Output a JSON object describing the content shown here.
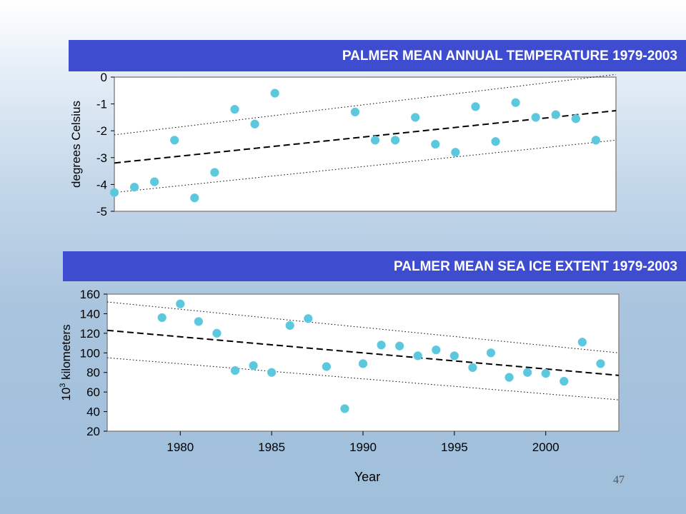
{
  "slide": {
    "page_number": "47",
    "colors": {
      "band": "#3e4dd0",
      "marker": "#5bc8de",
      "plot_bg": "#ffffff"
    }
  },
  "chart_data": [
    {
      "type": "scatter",
      "title": "PALMER MEAN ANNUAL TEMPERATURE 1979-2003",
      "ylabel": "degrees Celsius",
      "xlabel": "",
      "xlim": [
        1979,
        2004
      ],
      "ylim": [
        -5,
        0
      ],
      "yticks": [
        "0",
        "-1",
        "-2",
        "-3",
        "-4",
        "-5"
      ],
      "xticks": [],
      "series": [
        {
          "x": [
            1979,
            1980,
            1981,
            1982,
            1983,
            1984,
            1985,
            1986,
            1987,
            1988,
            1989,
            1990,
            1991,
            1992,
            1993,
            1994,
            1995,
            1996,
            1997,
            1998,
            1999,
            2000,
            2001,
            2002,
            2003
          ],
          "y": [
            -4.3,
            -4.1,
            -3.9,
            -2.35,
            -4.5,
            -3.55,
            -1.2,
            -1.75,
            -0.6,
            null,
            null,
            null,
            -1.3,
            -2.35,
            -2.35,
            -1.5,
            -2.5,
            -2.8,
            -1.1,
            -2.4,
            -0.95,
            -1.5,
            -1.4,
            -1.55,
            -2.35
          ]
        }
      ],
      "trend": {
        "start": [
          1979,
          -3.2
        ],
        "end": [
          2004,
          -1.25
        ]
      },
      "band_upper": {
        "start": [
          1979,
          -2.15
        ],
        "end": [
          2004,
          0.1
        ]
      },
      "band_lower": {
        "start": [
          1979,
          -4.3
        ],
        "end": [
          2004,
          -2.35
        ]
      },
      "grid": false
    },
    {
      "type": "scatter",
      "title": "PALMER MEAN SEA ICE EXTENT 1979-2003",
      "ylabel": "10^3 kilometers",
      "ylabel_base": "10",
      "ylabel_sup": "3",
      "ylabel_text": " kilometers",
      "xlabel": "Year",
      "xlim": [
        1976,
        2004
      ],
      "ylim": [
        20,
        160
      ],
      "yticks": [
        "160",
        "140",
        "120",
        "100",
        "80",
        "60",
        "40",
        "20"
      ],
      "xticks": [
        "1980",
        "1985",
        "1990",
        "1995",
        "2000"
      ],
      "series": [
        {
          "x": [
            1979,
            1980,
            1981,
            1982,
            1983,
            1984,
            1985,
            1986,
            1987,
            1988,
            1989,
            1990,
            1991,
            1992,
            1993,
            1994,
            1995,
            1996,
            1997,
            1998,
            1999,
            2000,
            2001,
            2002,
            2003
          ],
          "y": [
            136,
            150,
            132,
            120,
            82,
            87,
            80,
            128,
            135,
            86,
            43,
            89,
            108,
            107,
            97,
            103,
            97,
            85,
            100,
            75,
            80,
            79,
            71,
            111,
            89
          ]
        }
      ],
      "trend": {
        "start": [
          1976,
          123
        ],
        "end": [
          2004,
          77
        ]
      },
      "band_upper": {
        "start": [
          1976,
          152
        ],
        "end": [
          2004,
          100
        ]
      },
      "band_lower": {
        "start": [
          1976,
          95
        ],
        "end": [
          2004,
          52
        ]
      },
      "grid": false
    }
  ]
}
